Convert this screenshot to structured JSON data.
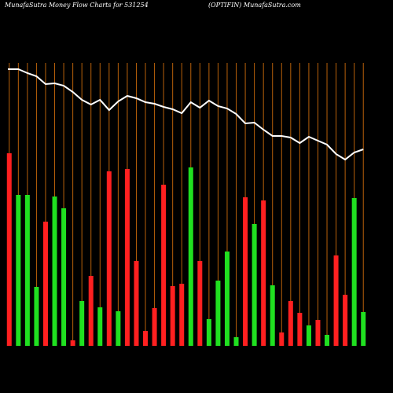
{
  "chart_data": {
    "type": "bar",
    "title": "MunafaSutra  Money Flow  Charts for 531254",
    "subtitle": "(OPTIFIN) MunafaSutra.com",
    "categories": [
      null,
      null,
      null,
      null,
      null,
      null,
      null,
      null,
      null,
      null,
      null,
      null,
      null,
      null,
      null,
      null,
      null,
      null,
      null,
      null,
      null,
      null,
      null,
      null,
      null,
      null,
      null,
      null,
      null,
      null,
      null,
      null,
      null,
      null,
      null,
      null,
      null,
      null,
      null,
      null
    ],
    "values": [
      245,
      192,
      192,
      75,
      158,
      190,
      175,
      7,
      57,
      89,
      49,
      222,
      44,
      225,
      108,
      19,
      48,
      205,
      76,
      79,
      227,
      108,
      34,
      83,
      120,
      11,
      189,
      155,
      185,
      77,
      17,
      57,
      42,
      26,
      33,
      14,
      115,
      65,
      188,
      43
    ],
    "colors": [
      "#ff2020",
      "#20e020",
      "#20e020",
      "#20e020",
      "#ff2020",
      "#20e020",
      "#20e020",
      "#ff2020",
      "#20e020",
      "#ff2020",
      "#20e020",
      "#ff2020",
      "#20e020",
      "#ff2020",
      "#ff2020",
      "#ff2020",
      "#ff2020",
      "#ff2020",
      "#ff2020",
      "#ff2020",
      "#20e020",
      "#ff2020",
      "#20e020",
      "#20e020",
      "#20e020",
      "#20e020",
      "#ff2020",
      "#20e020",
      "#ff2020",
      "#20e020",
      "#ff2020",
      "#ff2020",
      "#ff2020",
      "#20e020",
      "#ff2020",
      "#20e020",
      "#ff2020",
      "#ff2020",
      "#20e020",
      "#20e020"
    ],
    "line": {
      "color": "#ffffff",
      "values": [
        352,
        352,
        347,
        343,
        333,
        334,
        331,
        323,
        313,
        307,
        313,
        300,
        311,
        318,
        315,
        310,
        308,
        304,
        301,
        296,
        310,
        303,
        312,
        305,
        302,
        295,
        283,
        284,
        275,
        267,
        267,
        265,
        258,
        266,
        261,
        256,
        244,
        237,
        246,
        250
      ]
    },
    "ylim": [
      0,
      360
    ],
    "grid_color": "#b8610a"
  }
}
